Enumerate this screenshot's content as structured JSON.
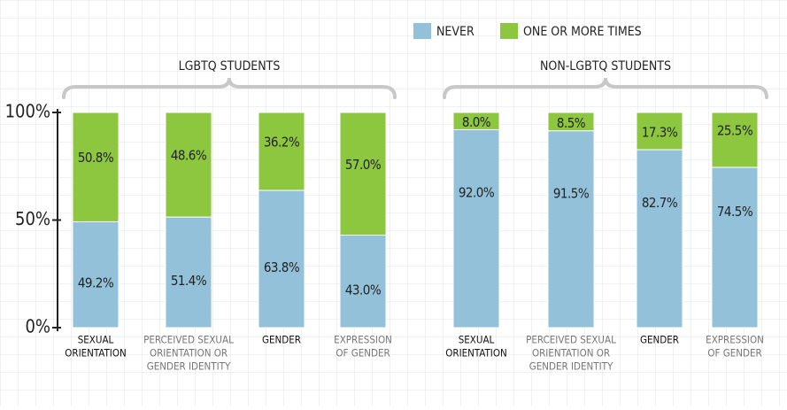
{
  "chart_data": {
    "type": "stacked_bar",
    "groups": [
      "LGBTQ STUDENTS",
      "NON-LGBTQ STUDENTS"
    ],
    "categories": [
      [
        "SEXUAL",
        "ORIENTATION"
      ],
      [
        "PERCEIVED SEXUAL",
        "ORIENTATION OR",
        "GENDER IDENTITY"
      ],
      [
        "GENDER"
      ],
      [
        "EXPRESSION",
        "OF GENDER"
      ],
      [
        "SEXUAL",
        "ORIENTATION"
      ],
      [
        "PERCEIVED SEXUAL",
        "ORIENTATION OR",
        "GENDER IDENTITY"
      ],
      [
        "GENDER"
      ],
      [
        "EXPRESSION",
        "OF GENDER"
      ]
    ],
    "series": [
      {
        "name": "NEVER",
        "color": "#93c1d9",
        "values": [
          49.2,
          51.4,
          63.8,
          43.0,
          92.0,
          91.5,
          82.7,
          74.5
        ],
        "value_labels": [
          "49.2%",
          "51.4%",
          "63.8%",
          "43.0%",
          "92.0%",
          "91.5%",
          "82.7%",
          "74.5%"
        ]
      },
      {
        "name": "ONE OR MORE TIMES",
        "color": "#8dc63f",
        "values": [
          50.8,
          48.6,
          36.2,
          57.0,
          8.0,
          8.5,
          17.3,
          25.5
        ],
        "value_labels": [
          "50.8%",
          "48.6%",
          "36.2%",
          "57.0%",
          "8.0%",
          "8.5%",
          "17.3%",
          "25.5%"
        ]
      }
    ],
    "ylim": [
      0,
      100
    ],
    "yticks": [
      {
        "value": 0,
        "label": "0%"
      },
      {
        "value": 50,
        "label": "50%"
      },
      {
        "value": 100,
        "label": "100%"
      }
    ]
  }
}
